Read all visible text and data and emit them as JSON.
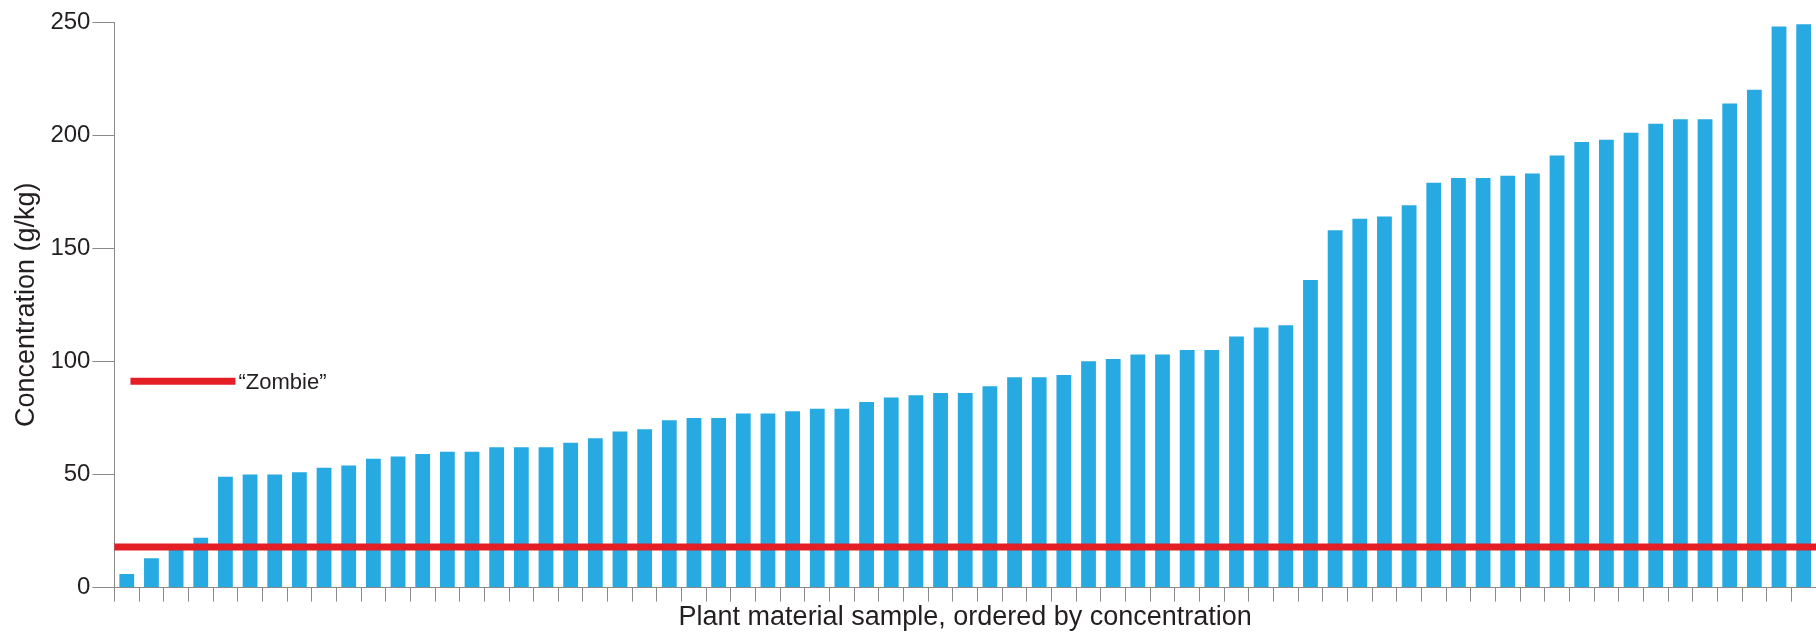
{
  "chart_data": {
    "type": "bar",
    "xlabel": "Plant material sample, ordered by concentration",
    "ylabel": "Concentration (g/kg)",
    "categories": [
      null,
      null,
      null,
      null,
      null,
      null,
      null,
      null,
      null,
      null,
      null,
      null,
      null,
      null,
      null,
      null,
      null,
      null,
      null,
      null,
      null,
      null,
      null,
      null,
      null,
      null,
      null,
      null,
      null,
      null,
      null,
      null,
      null,
      null,
      null,
      null,
      null,
      null,
      null,
      null,
      null,
      null,
      null,
      null,
      null,
      null,
      null,
      null,
      null,
      null,
      null,
      null,
      null,
      null,
      null,
      null,
      null,
      null,
      null,
      null,
      null,
      null,
      null,
      null,
      null,
      null,
      null,
      null,
      null
    ],
    "values": [
      6,
      13,
      17,
      22,
      49,
      50,
      50,
      51,
      53,
      54,
      57,
      58,
      59,
      60,
      60,
      62,
      62,
      62,
      64,
      66,
      69,
      70,
      74,
      75,
      75,
      77,
      77,
      78,
      79,
      79,
      82,
      84,
      85,
      86,
      86,
      89,
      93,
      93,
      94,
      100,
      101,
      103,
      103,
      105,
      105,
      111,
      115,
      116,
      136,
      158,
      163,
      164,
      169,
      179,
      181,
      181,
      182,
      183,
      191,
      197,
      198,
      201,
      205,
      207,
      207,
      214,
      220,
      248,
      249
    ],
    "color": "#27a9e1",
    "ylim": [
      0,
      250
    ],
    "yticks": [
      0,
      50,
      100,
      150,
      200,
      250
    ],
    "tick_labels": "y",
    "grid": false,
    "ref_lines": [
      {
        "axis": "y",
        "value": 18,
        "label": "“Zombie”",
        "color": "#e31e24"
      }
    ]
  }
}
